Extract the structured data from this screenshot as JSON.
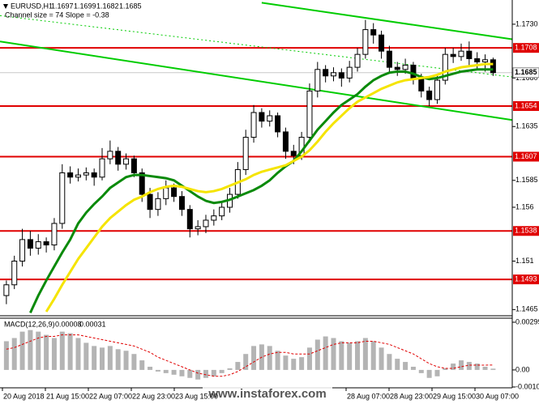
{
  "chart_data": [
    {
      "type": "candlestick",
      "title": "EURUSD,H1",
      "header_values": [
        1.1697,
        1.1699,
        1.1682,
        1.1685
      ],
      "annotation": "Channel size = 74 Slope = -0.38",
      "xlim": [
        -0.8,
        63.4
      ],
      "ylim": [
        1.146,
        1.1751
      ],
      "yticks": [
        {
          "value": 1.173,
          "label": "1.1730"
        },
        {
          "value": 1.168,
          "label": "1.1680"
        },
        1.1635,
        1.1585,
        1.156,
        1.151,
        1.1465
      ],
      "levels": [
        1.1708,
        1.1654,
        1.1607,
        1.1538,
        1.1493
      ],
      "level_color": "#e00000",
      "current_price": 1.1685,
      "time_labels": [
        "20 Aug 2018",
        "21 Aug 15:00",
        "22 Aug 07:00",
        "22 Aug 23:00",
        "23 Aug 15:00",
        null,
        null,
        null,
        "28 Aug 07:00",
        "28 Aug 23:00",
        "29 Aug 15:00",
        "30 Aug 07:00"
      ],
      "watermark": "www.instaforex.com",
      "ohlc": [
        [
          1.1478,
          1.1492,
          1.147,
          1.1488
        ],
        [
          1.1488,
          1.1515,
          1.1484,
          1.151
        ],
        [
          1.151,
          1.154,
          1.1505,
          1.153
        ],
        [
          1.153,
          1.1538,
          1.1515,
          1.1522
        ],
        [
          1.1522,
          1.1535,
          1.1516,
          1.1528
        ],
        [
          1.1528,
          1.1532,
          1.1518,
          1.1525
        ],
        [
          1.1525,
          1.155,
          1.152,
          1.1545
        ],
        [
          1.1545,
          1.16,
          1.154,
          1.1592
        ],
        [
          1.1592,
          1.1598,
          1.1582,
          1.1588
        ],
        [
          1.1588,
          1.1596,
          1.1584,
          1.159
        ],
        [
          1.159,
          1.1597,
          1.1585,
          1.1592
        ],
        [
          1.1592,
          1.1596,
          1.158,
          1.1588
        ],
        [
          1.1588,
          1.1615,
          1.1585,
          1.1605
        ],
        [
          1.1605,
          1.1622,
          1.16,
          1.1612
        ],
        [
          1.1612,
          1.1616,
          1.1594,
          1.16
        ],
        [
          1.16,
          1.161,
          1.1595,
          1.1605
        ],
        [
          1.1605,
          1.1608,
          1.1588,
          1.1592
        ],
        [
          1.1592,
          1.1596,
          1.1565,
          1.1572
        ],
        [
          1.1572,
          1.1578,
          1.155,
          1.1558
        ],
        [
          1.1558,
          1.1574,
          1.1552,
          1.1568
        ],
        [
          1.1568,
          1.1585,
          1.1562,
          1.1578
        ],
        [
          1.1578,
          1.1582,
          1.1565,
          1.157
        ],
        [
          1.157,
          1.1575,
          1.1552,
          1.1558
        ],
        [
          1.1558,
          1.1562,
          1.1532,
          1.154
        ],
        [
          1.154,
          1.1548,
          1.1534,
          1.1542
        ],
        [
          1.1542,
          1.1553,
          1.1536,
          1.1548
        ],
        [
          1.1548,
          1.1558,
          1.1543,
          1.1552
        ],
        [
          1.1552,
          1.1566,
          1.1548,
          1.156
        ],
        [
          1.156,
          1.1578,
          1.1555,
          1.1572
        ],
        [
          1.1572,
          1.1602,
          1.1568,
          1.1595
        ],
        [
          1.1595,
          1.1632,
          1.159,
          1.1625
        ],
        [
          1.1625,
          1.1655,
          1.162,
          1.1648
        ],
        [
          1.1648,
          1.1652,
          1.1634,
          1.164
        ],
        [
          1.164,
          1.165,
          1.1635,
          1.1645
        ],
        [
          1.1645,
          1.1648,
          1.1625,
          1.163
        ],
        [
          1.163,
          1.1634,
          1.1605,
          1.1612
        ],
        [
          1.1612,
          1.1618,
          1.16,
          1.1608
        ],
        [
          1.1608,
          1.163,
          1.1604,
          1.1625
        ],
        [
          1.1625,
          1.1675,
          1.162,
          1.1668
        ],
        [
          1.1668,
          1.1695,
          1.1662,
          1.1688
        ],
        [
          1.1688,
          1.1692,
          1.1676,
          1.1682
        ],
        [
          1.1682,
          1.169,
          1.1677,
          1.1685
        ],
        [
          1.1685,
          1.1689,
          1.1672,
          1.168
        ],
        [
          1.168,
          1.1696,
          1.1676,
          1.169
        ],
        [
          1.169,
          1.1708,
          1.1686,
          1.1702
        ],
        [
          1.1702,
          1.1734,
          1.1698,
          1.1725
        ],
        [
          1.1725,
          1.1731,
          1.1712,
          1.172
        ],
        [
          1.172,
          1.1724,
          1.1698,
          1.1705
        ],
        [
          1.1705,
          1.171,
          1.1684,
          1.169
        ],
        [
          1.169,
          1.1695,
          1.1682,
          1.1688
        ],
        [
          1.1688,
          1.1698,
          1.1684,
          1.1692
        ],
        [
          1.1692,
          1.1695,
          1.1674,
          1.168
        ],
        [
          1.168,
          1.1684,
          1.1662,
          1.1668
        ],
        [
          1.1668,
          1.1672,
          1.1654,
          1.166
        ],
        [
          1.166,
          1.1684,
          1.1656,
          1.1678
        ],
        [
          1.1678,
          1.1708,
          1.1674,
          1.1702
        ],
        [
          1.1702,
          1.1708,
          1.1694,
          1.17
        ],
        [
          1.17,
          1.1712,
          1.1696,
          1.1705
        ],
        [
          1.1705,
          1.1714,
          1.1692,
          1.1698
        ],
        [
          1.1698,
          1.1704,
          1.1689,
          1.1695
        ],
        [
          1.1695,
          1.1702,
          1.1686,
          1.1697
        ],
        [
          1.1697,
          1.1699,
          1.1682,
          1.1685
        ]
      ],
      "candle_color": "#000000",
      "series": [
        {
          "color": "#0a8a0a",
          "values": [
            null,
            null,
            null,
            1.1462,
            1.1478,
            1.1492,
            1.1505,
            1.1518,
            1.153,
            1.1545,
            1.1555,
            1.1563,
            1.157,
            1.1578,
            1.1583,
            1.1588,
            1.159,
            1.159,
            1.1589,
            1.1588,
            1.1587,
            1.1585,
            1.158,
            1.1575,
            1.157,
            1.1566,
            1.1564,
            1.1565,
            1.1567,
            1.157,
            1.1573,
            1.1576,
            1.158,
            1.1585,
            1.1592,
            1.1598,
            1.1603,
            1.1612,
            1.1622,
            1.1632,
            1.164,
            1.1648,
            1.1655,
            1.166,
            1.1665,
            1.1672,
            1.1678,
            1.1682,
            1.1685,
            1.1686,
            1.1686,
            1.1684,
            1.1681,
            1.1679,
            1.168,
            1.1682,
            1.1684,
            1.1686,
            1.1687,
            1.1688,
            1.1688,
            1.1688
          ]
        },
        {
          "color": "#f5e400",
          "values": [
            null,
            null,
            null,
            null,
            null,
            1.1463,
            1.1475,
            1.1488,
            1.15,
            1.1512,
            1.1522,
            1.1532,
            1.1542,
            1.155,
            1.1556,
            1.1562,
            1.1567,
            1.157,
            1.1574,
            1.1577,
            1.1579,
            1.158,
            1.1579,
            1.1577,
            1.1575,
            1.1574,
            1.1575,
            1.1577,
            1.158,
            1.1583,
            1.1586,
            1.159,
            1.1593,
            1.1595,
            1.1597,
            1.1599,
            1.1603,
            1.1607,
            1.1613,
            1.1621,
            1.163,
            1.1638,
            1.1645,
            1.1652,
            1.1658,
            1.1662,
            1.1666,
            1.167,
            1.1673,
            1.1676,
            1.1678,
            1.1679,
            1.168,
            1.1681,
            1.1683,
            1.1686,
            1.1688,
            1.169,
            1.1691,
            1.1692,
            1.1693,
            1.1693
          ]
        }
      ],
      "trendlines": [
        {
          "x": [
            32,
            63.4
          ],
          "y": [
            1.175,
            1.1716
          ],
          "color": "#00cc00",
          "dashed": false
        },
        {
          "x": [
            -0.8,
            63.4
          ],
          "y": [
            1.1714,
            1.1641
          ],
          "color": "#00cc00",
          "dashed": false
        },
        {
          "x": [
            -0.8,
            63.4
          ],
          "y": [
            1.1738,
            1.1681
          ],
          "color": "#00cc00",
          "dashed": true
        }
      ]
    },
    {
      "type": "macd",
      "title": "MACD(12,26,9)",
      "readout": [
        8e-05,
        0.00031
      ],
      "ylim": [
        -0.00107,
        0.00299
      ],
      "yticks": [
        0.00299,
        {
          "value": 0,
          "label": "0.00"
        },
        -0.00107
      ],
      "histogram_color": "#b4b4b4",
      "signal_color": "#e00000",
      "histogram": [
        0.0018,
        0.002,
        0.0024,
        0.0025,
        0.0024,
        0.0022,
        0.002,
        0.0024,
        0.0023,
        0.002,
        0.0017,
        0.0015,
        0.0014,
        0.0015,
        0.0013,
        0.0012,
        0.001,
        0.0006,
        0.0002,
        -0.0001,
        -0.0002,
        -0.0003,
        -0.0004,
        -0.0005,
        -0.0006,
        -0.0005,
        -0.0004,
        -0.0002,
        0.0001,
        0.0005,
        0.001,
        0.0015,
        0.0016,
        0.0015,
        0.0012,
        0.0009,
        0.0007,
        0.0008,
        0.0014,
        0.0019,
        0.0021,
        0.002,
        0.0018,
        0.0017,
        0.0018,
        0.002,
        0.0018,
        0.0014,
        0.001,
        0.0007,
        0.0005,
        0.0002,
        -0.0002,
        -0.0005,
        -0.0004,
        0.0001,
        0.0004,
        0.0006,
        0.0005,
        0.0004,
        0.0002,
        8e-05
      ],
      "signal": [
        0.0013,
        0.0014,
        0.0016,
        0.0018,
        0.002,
        0.0021,
        0.0021,
        0.0022,
        0.0022,
        0.0022,
        0.0021,
        0.002,
        0.0019,
        0.0018,
        0.0017,
        0.0016,
        0.0015,
        0.0013,
        0.0011,
        0.0008,
        0.0006,
        0.0004,
        0.0002,
        0,
        -0.0002,
        -0.0003,
        -0.0004,
        -0.0004,
        -0.0003,
        -0.0001,
        0.0002,
        0.0005,
        0.0008,
        0.001,
        0.0011,
        0.0011,
        0.001,
        0.001,
        0.001,
        0.0012,
        0.0014,
        0.0016,
        0.0017,
        0.0017,
        0.0017,
        0.0018,
        0.0018,
        0.0017,
        0.0016,
        0.0014,
        0.0012,
        0.001,
        0.0007,
        0.0004,
        0.0002,
        0.0001,
        0.0001,
        0.0002,
        0.0003,
        0.0003,
        0.0003,
        0.00031
      ]
    }
  ]
}
